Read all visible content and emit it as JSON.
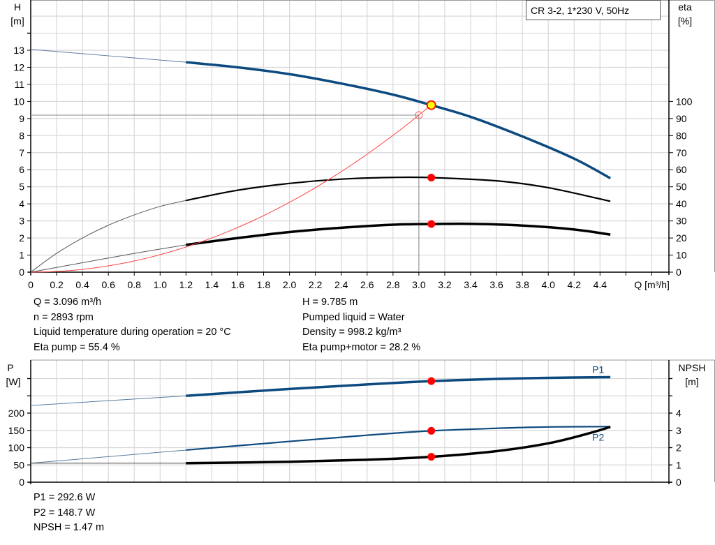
{
  "chart_data": [
    {
      "type": "line",
      "title": "CR 3-2, 1*230 V, 50Hz",
      "xlabel": "Q [m³/h]",
      "ylabel": "H\n[m]",
      "y2label": "eta\n[%]",
      "xlabel_parts": [
        "Q [m³/h]"
      ],
      "ylabel_parts": [
        "H",
        "[m]"
      ],
      "y2label_parts": [
        "eta",
        "[%]"
      ],
      "xlim": [
        0,
        4.8
      ],
      "ylim": [
        0,
        15
      ],
      "y2lim": [
        0,
        150
      ],
      "grid": true,
      "xticks": [
        "0",
        "0.2",
        "0.4",
        "0.6",
        "0.8",
        "1.0",
        "1.2",
        "1.4",
        "1.6",
        "1.8",
        "2.0",
        "2.2",
        "2.4",
        "2.6",
        "2.8",
        "3.0",
        "3.2",
        "3.4",
        "3.6",
        "3.8",
        "4.0",
        "4.2",
        "4.4"
      ],
      "yticks": [
        "0",
        "1",
        "2",
        "3",
        "4",
        "5",
        "6",
        "7",
        "8",
        "9",
        "10",
        "11",
        "12",
        "13"
      ],
      "y2ticks": [
        "0",
        "10",
        "20",
        "30",
        "40",
        "50",
        "60",
        "70",
        "80",
        "90",
        "100"
      ],
      "series": [
        {
          "id": "H",
          "axis": "left",
          "color": "#0d4a80",
          "thin_range": [
            0,
            1.2
          ],
          "x": [
            0,
            0.4,
            0.8,
            1.2,
            1.6,
            2.0,
            2.4,
            2.8,
            3.096,
            3.4,
            3.8,
            4.2,
            4.48
          ],
          "y": [
            13.05,
            12.8,
            12.55,
            12.3,
            12.0,
            11.6,
            11.05,
            10.4,
            9.785,
            9.1,
            7.95,
            6.65,
            5.5
          ]
        },
        {
          "id": "eta_pump",
          "axis": "right",
          "color": "#000000",
          "thin_range": [
            0,
            1.2
          ],
          "x": [
            0,
            0.2,
            0.4,
            0.6,
            0.8,
            1.0,
            1.2,
            1.6,
            2.0,
            2.4,
            2.8,
            3.096,
            3.6,
            4.0,
            4.48
          ],
          "y": [
            0,
            11,
            20,
            27.5,
            33.5,
            38.5,
            42,
            48,
            52,
            54.5,
            55.5,
            55.4,
            53.5,
            49.5,
            41.5
          ]
        },
        {
          "id": "eta_pump_motor",
          "axis": "right",
          "color": "#000000",
          "thin_range": [
            0,
            1.2
          ],
          "x": [
            0,
            0.4,
            0.8,
            1.2,
            1.6,
            2.0,
            2.4,
            2.8,
            3.096,
            3.4,
            3.8,
            4.2,
            4.48
          ],
          "y": [
            0,
            5.5,
            11,
            16,
            20,
            23.5,
            26,
            27.8,
            28.2,
            28.3,
            27.3,
            25,
            22
          ]
        },
        {
          "id": "system_curve",
          "axis": "left",
          "color": "#ff4040",
          "thin_range": [
            0,
            3.096
          ],
          "quadratic_k": 1.0222,
          "x_end": 3.096
        }
      ],
      "operating_point": {
        "Q": 3.096,
        "H": 9.785,
        "eta_pump": 55.4,
        "eta_pump_motor": 28.2
      },
      "reference_point": {
        "Q": 3.0,
        "H": 9.2
      }
    },
    {
      "type": "line",
      "ylabel_parts": [
        "P",
        "[W]"
      ],
      "y2label_parts": [
        "NPSH",
        "[m]"
      ],
      "xlim": [
        0,
        4.8
      ],
      "ylim": [
        0,
        350
      ],
      "y2lim": [
        0,
        7
      ],
      "grid": true,
      "yticks": [
        "0",
        "50",
        "100",
        "150",
        "200"
      ],
      "y2ticks": [
        "0",
        "1",
        "2",
        "3",
        "4"
      ],
      "series": [
        {
          "id": "P1",
          "name": "P1",
          "axis": "left",
          "color": "#0d4a80",
          "x": [
            0,
            0.6,
            1.2,
            2.0,
            2.6,
            3.096,
            3.6,
            4.0,
            4.48
          ],
          "y": [
            222,
            236,
            250,
            270,
            283,
            292.6,
            299,
            302,
            304
          ]
        },
        {
          "id": "P2",
          "name": "P2",
          "axis": "left",
          "color": "#0d4a80",
          "x": [
            0,
            0.6,
            1.2,
            2.0,
            2.6,
            3.096,
            3.6,
            4.0,
            4.48
          ],
          "y": [
            55,
            74,
            93,
            118,
            136,
            148.7,
            156,
            160,
            161
          ]
        },
        {
          "id": "NPSH",
          "axis": "right",
          "color": "#000000",
          "x": [
            0,
            0.6,
            1.2,
            2.0,
            2.6,
            3.096,
            3.6,
            4.0,
            4.3,
            4.48
          ],
          "y": [
            1.1,
            1.1,
            1.1,
            1.18,
            1.3,
            1.47,
            1.8,
            2.25,
            2.8,
            3.2
          ]
        }
      ],
      "operating_point": {
        "Q": 3.096,
        "P1": 292.6,
        "P2": 148.7,
        "NPSH": 1.47
      }
    }
  ],
  "info_top": {
    "left": [
      "Q = 3.096 m³/h",
      "n = 2893 rpm",
      "Liquid temperature during operation = 20 °C",
      "Eta pump = 55.4 %"
    ],
    "right": [
      "H = 9.785 m",
      "Pumped liquid = Water",
      "Density = 998.2 kg/m³",
      "Eta pump+motor = 28.2 %"
    ]
  },
  "info_bottom": [
    "P1 = 292.6 W",
    "P2 = 148.7 W",
    "NPSH = 1.47 m"
  ]
}
